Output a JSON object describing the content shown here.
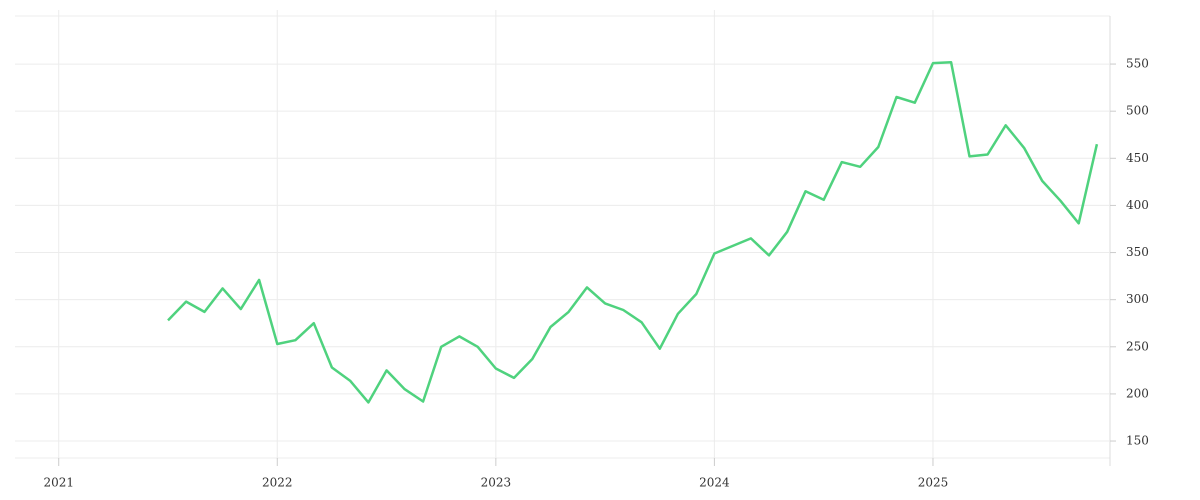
{
  "chart_data": {
    "type": "line",
    "x": [
      2021.5,
      2021.583,
      2021.667,
      2021.75,
      2021.833,
      2021.917,
      2022.0,
      2022.083,
      2022.167,
      2022.25,
      2022.333,
      2022.417,
      2022.5,
      2022.583,
      2022.667,
      2022.75,
      2022.833,
      2022.917,
      2023.0,
      2023.083,
      2023.167,
      2023.25,
      2023.333,
      2023.417,
      2023.5,
      2023.583,
      2023.667,
      2023.75,
      2023.833,
      2023.917,
      2024.0,
      2024.083,
      2024.167,
      2024.25,
      2024.333,
      2024.417,
      2024.5,
      2024.583,
      2024.667,
      2024.75,
      2024.833,
      2024.917,
      2025.0,
      2025.083,
      2025.167,
      2025.25,
      2025.333,
      2025.417,
      2025.5,
      2025.583,
      2025.667,
      2025.75
    ],
    "series": [
      {
        "color": "#4fd27e",
        "values": [
          278,
          298,
          287,
          312,
          290,
          321,
          253,
          257,
          275,
          228,
          214,
          191,
          225,
          205,
          192,
          250,
          261,
          250,
          227,
          217,
          237,
          271,
          287,
          313,
          296,
          289,
          276,
          248,
          285,
          306,
          349,
          357,
          365,
          347,
          372,
          415,
          406,
          446,
          441,
          462,
          515,
          509,
          551,
          552,
          452,
          454,
          485,
          461,
          426,
          405,
          381,
          465
        ]
      }
    ],
    "xlim": [
      2020.8,
      2025.81
    ],
    "xticks": [
      2021,
      2022,
      2023,
      2024,
      2025
    ],
    "ylim": [
      132,
      601
    ],
    "yticks": [
      150,
      200,
      250,
      300,
      350,
      400,
      450,
      500,
      550
    ],
    "grid": true,
    "y_axis_side": "right"
  }
}
